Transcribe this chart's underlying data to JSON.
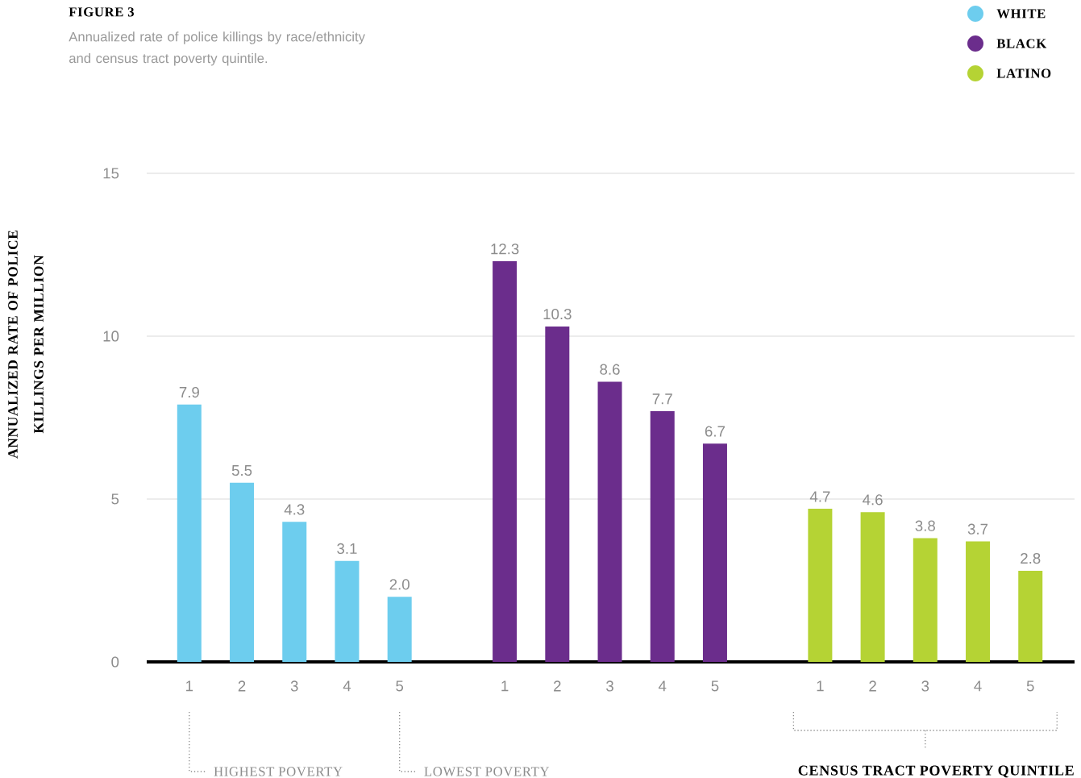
{
  "chart_data": {
    "type": "bar",
    "title": "FIGURE 3",
    "subtitle": "Annualized rate of police killings by race/ethnicity and census tract poverty quintile.",
    "ylabel": "ANNUALIZED RATE OF POLICE KILLINGS PER MILLION",
    "categories": [
      "1",
      "2",
      "3",
      "4",
      "5",
      null,
      "1",
      "2",
      "3",
      "4",
      "5",
      null,
      "1",
      "2",
      "3",
      "4",
      "5"
    ],
    "series": [
      {
        "name": "WHITE",
        "color": "#6dcdee",
        "values": [
          7.9,
          5.5,
          4.3,
          3.1,
          2.0,
          null,
          null,
          null,
          null,
          null,
          null,
          null,
          null,
          null,
          null,
          null,
          null
        ],
        "value_labels": [
          "7.9",
          "5.5",
          "4.3",
          "3.1",
          "2.0",
          null,
          null,
          null,
          null,
          null,
          null,
          null,
          null,
          null,
          null,
          null,
          null
        ]
      },
      {
        "name": "BLACK",
        "color": "#6b2d8c",
        "values": [
          null,
          null,
          null,
          null,
          null,
          null,
          12.3,
          10.3,
          8.6,
          7.7,
          6.7,
          null,
          null,
          null,
          null,
          null,
          null
        ],
        "value_labels": [
          null,
          null,
          null,
          null,
          null,
          null,
          "12.3",
          "10.3",
          "8.6",
          "7.7",
          "6.7",
          null,
          null,
          null,
          null,
          null,
          null
        ]
      },
      {
        "name": "LATINO",
        "color": "#b5d334",
        "values": [
          null,
          null,
          null,
          null,
          null,
          null,
          null,
          null,
          null,
          null,
          null,
          null,
          4.7,
          4.6,
          3.8,
          3.7,
          2.8
        ],
        "value_labels": [
          null,
          null,
          null,
          null,
          null,
          null,
          null,
          null,
          null,
          null,
          null,
          null,
          "4.7",
          "4.6",
          "3.8",
          "3.7",
          "2.8"
        ]
      }
    ],
    "ylim": [
      0,
      15
    ],
    "yticks": [
      0,
      5,
      10,
      15
    ],
    "grid": "y",
    "legend": "top right",
    "annotations": [
      "HIGHEST POVERTY",
      "LOWEST POVERTY",
      "CENSUS TRACT POVERTY QUINTILE"
    ]
  }
}
